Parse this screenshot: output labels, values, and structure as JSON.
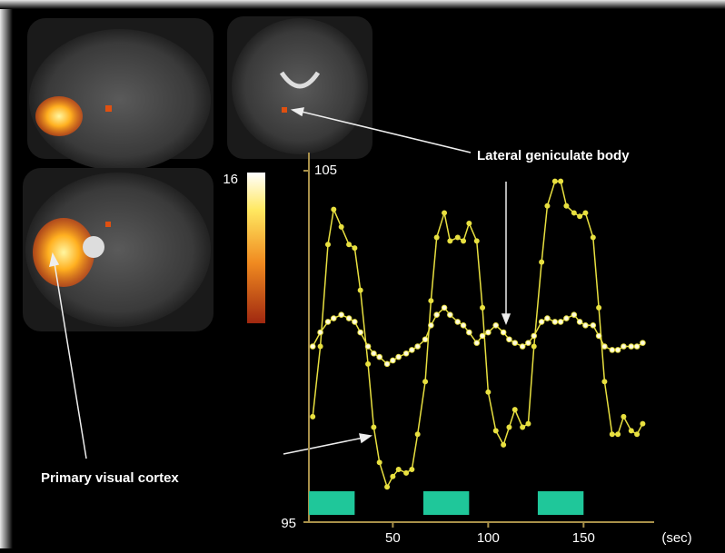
{
  "chart_data": {
    "type": "line",
    "x_label": "(sec)",
    "xlim": [
      6,
      187
    ],
    "xticks": [
      50,
      100,
      150
    ],
    "ylim": [
      95,
      105
    ],
    "yticks": [
      95,
      105
    ],
    "colorbar_max": 16,
    "stimulus_blocks": {
      "color": "#1fc79a",
      "starts": [
        6,
        66,
        126
      ],
      "ends": [
        30,
        90,
        150
      ]
    },
    "x": [
      8,
      12,
      16,
      19,
      23,
      27,
      30,
      33,
      37,
      40,
      43,
      47,
      50,
      53,
      57,
      60,
      63,
      67,
      70,
      73,
      77,
      80,
      84,
      87,
      90,
      94,
      97,
      100,
      104,
      108,
      111,
      114,
      118,
      121,
      124,
      128,
      131,
      135,
      138,
      141,
      145,
      148,
      151,
      155,
      158,
      161,
      165,
      168,
      171,
      175,
      178,
      181
    ],
    "series": [
      {
        "name": "Primary visual cortex",
        "color": "#e8e040",
        "values": [
          98.0,
          100.0,
          102.9,
          103.9,
          103.4,
          102.9,
          102.8,
          101.6,
          99.5,
          97.7,
          96.7,
          96.0,
          96.3,
          96.5,
          96.4,
          96.5,
          97.5,
          99.0,
          101.3,
          103.1,
          103.8,
          103.0,
          103.1,
          103.0,
          103.5,
          103.0,
          101.1,
          98.7,
          97.6,
          97.2,
          97.7,
          98.2,
          97.7,
          97.8,
          100.0,
          102.4,
          104.0,
          104.7,
          104.7,
          104.0,
          103.8,
          103.7,
          103.8,
          103.1,
          101.1,
          99.0,
          97.5,
          97.5,
          98.0,
          97.6,
          97.5,
          97.8
        ]
      },
      {
        "name": "Lateral geniculate body",
        "color": "#e8e040",
        "values": [
          100.0,
          100.4,
          100.7,
          100.8,
          100.9,
          100.8,
          100.7,
          100.4,
          100.0,
          99.8,
          99.7,
          99.5,
          99.6,
          99.7,
          99.8,
          99.9,
          100.0,
          100.2,
          100.6,
          100.9,
          101.1,
          100.9,
          100.7,
          100.6,
          100.4,
          100.1,
          100.3,
          100.4,
          100.6,
          100.4,
          100.2,
          100.1,
          100.0,
          100.1,
          100.3,
          100.7,
          100.8,
          100.7,
          100.7,
          100.8,
          100.9,
          100.7,
          100.6,
          100.6,
          100.3,
          100.0,
          99.9,
          99.9,
          100.0,
          100.0,
          100.0,
          100.1
        ]
      }
    ]
  }
}
